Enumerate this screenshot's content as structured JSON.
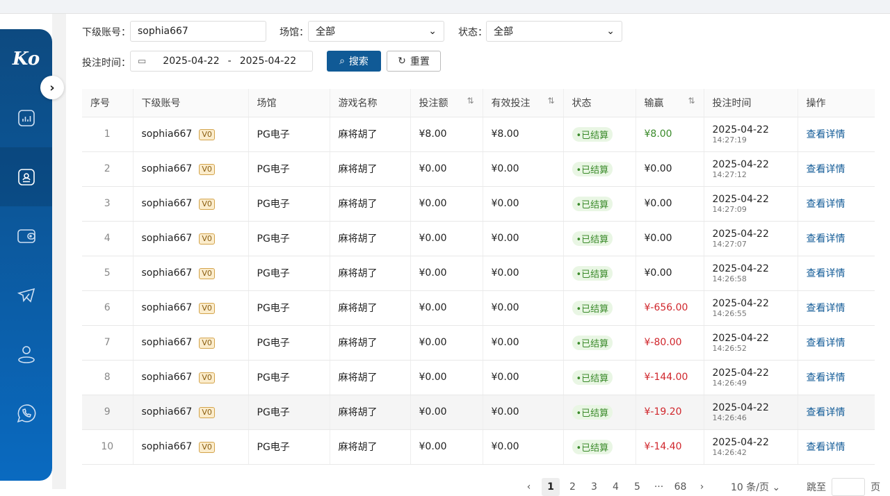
{
  "sidebar": {
    "logo": "Ko",
    "items": [
      {
        "icon": "chart-icon"
      },
      {
        "icon": "user-card-icon",
        "active": true
      },
      {
        "icon": "wallet-icon"
      },
      {
        "icon": "telegram-icon"
      },
      {
        "icon": "user-icon"
      },
      {
        "icon": "whatsapp-icon"
      }
    ]
  },
  "filters": {
    "account_label": "下级账号：",
    "account_value": "sophia667",
    "venue_label": "场馆：",
    "venue_value": "全部",
    "status_label": "状态：",
    "status_value": "全部",
    "time_label": "投注时间：",
    "date_start": "2025-04-22",
    "date_sep": "-",
    "date_end": "2025-04-22",
    "search": "搜索",
    "reset": "重置"
  },
  "table": {
    "columns": [
      "序号",
      "下级账号",
      "场馆",
      "游戏名称",
      "投注额",
      "有效投注",
      "状态",
      "输赢",
      "投注时间",
      "操作"
    ],
    "rows": [
      {
        "idx": "1",
        "account": "sophia667",
        "vip": "V0",
        "venue": "PG电子",
        "game": "麻将胡了",
        "bet": "¥8.00",
        "valid": "¥8.00",
        "status": "•已结算",
        "win": "¥8.00",
        "win_color": "pos",
        "date": "2025-04-22",
        "time": "14:27:19",
        "action": "查看详情"
      },
      {
        "idx": "2",
        "account": "sophia667",
        "vip": "V0",
        "venue": "PG电子",
        "game": "麻将胡了",
        "bet": "¥0.00",
        "valid": "¥0.00",
        "status": "•已结算",
        "win": "¥0.00",
        "win_color": "",
        "date": "2025-04-22",
        "time": "14:27:12",
        "action": "查看详情"
      },
      {
        "idx": "3",
        "account": "sophia667",
        "vip": "V0",
        "venue": "PG电子",
        "game": "麻将胡了",
        "bet": "¥0.00",
        "valid": "¥0.00",
        "status": "•已结算",
        "win": "¥0.00",
        "win_color": "",
        "date": "2025-04-22",
        "time": "14:27:09",
        "action": "查看详情"
      },
      {
        "idx": "4",
        "account": "sophia667",
        "vip": "V0",
        "venue": "PG电子",
        "game": "麻将胡了",
        "bet": "¥0.00",
        "valid": "¥0.00",
        "status": "•已结算",
        "win": "¥0.00",
        "win_color": "",
        "date": "2025-04-22",
        "time": "14:27:07",
        "action": "查看详情"
      },
      {
        "idx": "5",
        "account": "sophia667",
        "vip": "V0",
        "venue": "PG电子",
        "game": "麻将胡了",
        "bet": "¥0.00",
        "valid": "¥0.00",
        "status": "•已结算",
        "win": "¥0.00",
        "win_color": "",
        "date": "2025-04-22",
        "time": "14:26:58",
        "action": "查看详情"
      },
      {
        "idx": "6",
        "account": "sophia667",
        "vip": "V0",
        "venue": "PG电子",
        "game": "麻将胡了",
        "bet": "¥0.00",
        "valid": "¥0.00",
        "status": "•已结算",
        "win": "¥-656.00",
        "win_color": "neg",
        "date": "2025-04-22",
        "time": "14:26:55",
        "action": "查看详情"
      },
      {
        "idx": "7",
        "account": "sophia667",
        "vip": "V0",
        "venue": "PG电子",
        "game": "麻将胡了",
        "bet": "¥0.00",
        "valid": "¥0.00",
        "status": "•已结算",
        "win": "¥-80.00",
        "win_color": "neg",
        "date": "2025-04-22",
        "time": "14:26:52",
        "action": "查看详情"
      },
      {
        "idx": "8",
        "account": "sophia667",
        "vip": "V0",
        "venue": "PG电子",
        "game": "麻将胡了",
        "bet": "¥0.00",
        "valid": "¥0.00",
        "status": "•已结算",
        "win": "¥-144.00",
        "win_color": "neg",
        "date": "2025-04-22",
        "time": "14:26:49",
        "action": "查看详情"
      },
      {
        "idx": "9",
        "account": "sophia667",
        "vip": "V0",
        "venue": "PG电子",
        "game": "麻将胡了",
        "bet": "¥0.00",
        "valid": "¥0.00",
        "status": "•已结算",
        "win": "¥-19.20",
        "win_color": "neg",
        "date": "2025-04-22",
        "time": "14:26:46",
        "action": "查看详情",
        "hover": true
      },
      {
        "idx": "10",
        "account": "sophia667",
        "vip": "V0",
        "venue": "PG电子",
        "game": "麻将胡了",
        "bet": "¥0.00",
        "valid": "¥0.00",
        "status": "•已结算",
        "win": "¥-14.40",
        "win_color": "neg",
        "date": "2025-04-22",
        "time": "14:26:42",
        "action": "查看详情"
      }
    ]
  },
  "pagination": {
    "prev": "‹",
    "pages": [
      "1",
      "2",
      "3",
      "4",
      "5",
      "···",
      "68"
    ],
    "current": "1",
    "next": "›",
    "page_size": "10 条/页",
    "jump_label": "跳至",
    "page_suffix": "页"
  }
}
